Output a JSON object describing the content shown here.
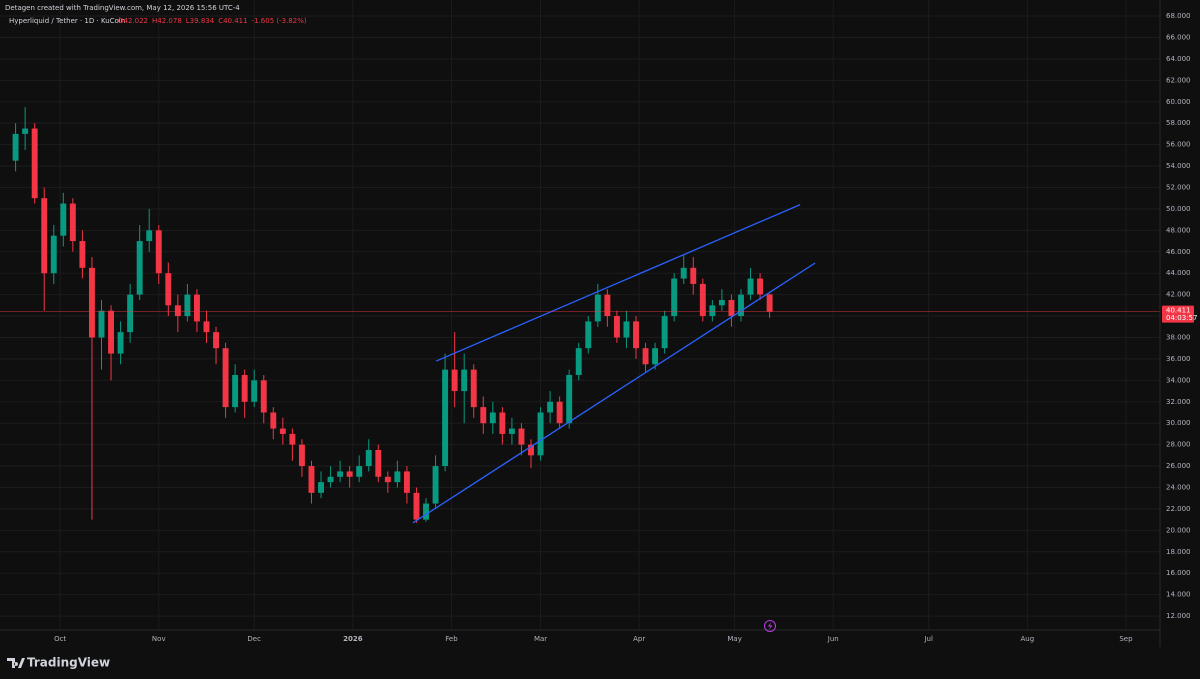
{
  "header": "Detagen created with TradingView.com, May 12, 2026 15:56 UTC-4",
  "footer": "TradingView",
  "chart_data": {
    "type": "candlestick",
    "symbol": "Hyperliquid / Tether · 1D · KuCoin",
    "legend_values": [
      "O42.022",
      "H42.078",
      "L39.834",
      "C40.411",
      "-1.605 (-3.82%)"
    ],
    "last_price": 40.411,
    "countdown": "04:03:57",
    "up_color": "#089981",
    "down_color": "#f23645",
    "line_color": "#2962ff",
    "grid": true,
    "xlim": [
      -18.9,
      345.7
    ],
    "ylim": [
      10.7,
      68.75
    ],
    "xticks": [
      {
        "value": 0,
        "label": "Oct"
      },
      {
        "value": 31,
        "label": "Nov"
      },
      {
        "value": 61,
        "label": "Dec"
      },
      {
        "value": 92,
        "label": "2026"
      },
      {
        "value": 123,
        "label": "Feb"
      },
      {
        "value": 151,
        "label": "Mar"
      },
      {
        "value": 182,
        "label": "Apr"
      },
      {
        "value": 212,
        "label": "May"
      },
      {
        "value": 243,
        "label": "Jun"
      },
      {
        "value": 273,
        "label": "Jul"
      },
      {
        "value": 304,
        "label": "Aug"
      },
      {
        "value": 335,
        "label": "Sep"
      }
    ],
    "yticks": [
      {
        "value": 12,
        "label": "12.000"
      },
      {
        "value": 14,
        "label": "14.000"
      },
      {
        "value": 16,
        "label": "16.000"
      },
      {
        "value": 18,
        "label": "18.000"
      },
      {
        "value": 20,
        "label": "20.000"
      },
      {
        "value": 22,
        "label": "22.000"
      },
      {
        "value": 24,
        "label": "24.000"
      },
      {
        "value": 26,
        "label": "26.000"
      },
      {
        "value": 28,
        "label": "28.000"
      },
      {
        "value": 30,
        "label": "30.000"
      },
      {
        "value": 32,
        "label": "32.000"
      },
      {
        "value": 34,
        "label": "34.000"
      },
      {
        "value": 36,
        "label": "36.000"
      },
      {
        "value": 38,
        "label": "38.000"
      },
      {
        "value": 40,
        "label": "40.000"
      },
      {
        "value": 42,
        "label": "42.000"
      },
      {
        "value": 44,
        "label": "44.000"
      },
      {
        "value": 46,
        "label": "46.000"
      },
      {
        "value": 48,
        "label": "48.000"
      },
      {
        "value": 50,
        "label": "50.000"
      },
      {
        "value": 52,
        "label": "52.000"
      },
      {
        "value": 54,
        "label": "54.000"
      },
      {
        "value": 56,
        "label": "56.000"
      },
      {
        "value": 58,
        "label": "58.000"
      },
      {
        "value": 60,
        "label": "60.000"
      },
      {
        "value": 62,
        "label": "62.000"
      },
      {
        "value": 64,
        "label": "64.000"
      },
      {
        "value": 66,
        "label": "66.000"
      },
      {
        "value": 68,
        "label": "68.000"
      }
    ],
    "x": [
      -14,
      -11,
      -8,
      -5,
      -2,
      1,
      4,
      7,
      10,
      13,
      16,
      19,
      22,
      25,
      28,
      31,
      34,
      37,
      40,
      43,
      46,
      49,
      52,
      55,
      58,
      61,
      64,
      67,
      70,
      73,
      76,
      79,
      82,
      85,
      88,
      91,
      94,
      97,
      100,
      103,
      106,
      109,
      112,
      115,
      118,
      121,
      124,
      127,
      130,
      133,
      136,
      139,
      142,
      145,
      148,
      151,
      154,
      157,
      160,
      163,
      166,
      169,
      172,
      175,
      178,
      181,
      184,
      187,
      190,
      193,
      196,
      199,
      202,
      205,
      208,
      211,
      214,
      217,
      220,
      223
    ],
    "open": [
      54.5,
      57,
      57.5,
      51,
      44,
      47.5,
      50.5,
      47,
      44.5,
      38,
      40.5,
      36.5,
      38.5,
      42,
      47,
      48,
      44,
      41,
      40,
      42,
      39.5,
      38.5,
      37,
      31.5,
      34.5,
      32,
      34,
      31,
      29.5,
      29,
      28,
      26,
      23.5,
      24.5,
      25,
      25.5,
      25,
      26,
      27.5,
      25,
      24.5,
      25.5,
      23.5,
      21,
      22.5,
      26,
      35,
      33,
      35,
      31.5,
      30,
      31,
      29,
      29.5,
      28,
      27,
      31,
      32,
      30,
      34.5,
      37,
      39.5,
      42,
      40,
      38,
      39.5,
      37,
      35.5,
      37,
      40,
      43.5,
      44.5,
      43,
      40,
      41,
      41.5,
      40,
      42,
      43.5,
      42.022
    ],
    "high": [
      58,
      59.5,
      58,
      52,
      48.5,
      51.5,
      51,
      48,
      45.5,
      41.5,
      41,
      39.5,
      43,
      48.5,
      50,
      48.5,
      45,
      42,
      43,
      42.5,
      40.5,
      39,
      37.5,
      35.5,
      35,
      35,
      34.5,
      31.5,
      30.5,
      29.5,
      28.5,
      26.5,
      25.5,
      26,
      26.5,
      26,
      27,
      28.5,
      28,
      25.5,
      26.5,
      26,
      24,
      23,
      27,
      36.5,
      38.5,
      36.5,
      35.5,
      32.5,
      32,
      31.5,
      30.5,
      30,
      28.5,
      31.5,
      33,
      32.5,
      35,
      37.5,
      40,
      43,
      42.5,
      40.5,
      40.5,
      40,
      37.5,
      37.5,
      40.5,
      44,
      45.7,
      45.5,
      43.5,
      41.5,
      42.5,
      42,
      42.5,
      44.5,
      44,
      42.078
    ],
    "low": [
      53.5,
      55.5,
      50.5,
      40.5,
      43,
      46.5,
      46,
      43.5,
      21,
      35,
      34,
      35.5,
      37.5,
      41.5,
      46,
      43,
      40,
      38.5,
      39.5,
      38.5,
      37.5,
      35.5,
      30.5,
      31,
      30.5,
      31.5,
      30,
      28.5,
      28,
      26.5,
      25,
      22.5,
      23,
      24,
      24.5,
      24,
      24.5,
      25.5,
      24.5,
      23.5,
      24,
      22.5,
      20.7,
      20.8,
      22,
      25.5,
      31.5,
      30,
      30.5,
      29,
      29,
      28,
      28,
      27,
      25.8,
      26.5,
      30,
      29.5,
      29.5,
      34,
      36.5,
      39,
      39,
      37.5,
      37,
      36,
      34.8,
      35,
      36.5,
      39.5,
      43,
      42,
      39.5,
      39.5,
      40.5,
      39,
      39.5,
      41.5,
      41.5,
      39.834
    ],
    "close": [
      57,
      57.5,
      51,
      44,
      47.5,
      50.5,
      47,
      44.5,
      38,
      40.5,
      36.5,
      38.5,
      42,
      47,
      48,
      44,
      41,
      40,
      42,
      39.5,
      38.5,
      37,
      31.5,
      34.5,
      32,
      34,
      31,
      29.5,
      29,
      28,
      26,
      23.5,
      24.5,
      25,
      25.5,
      25,
      26,
      27.5,
      25,
      24.5,
      25.5,
      23.5,
      21,
      22.5,
      26,
      35,
      33,
      35,
      31.5,
      30,
      31,
      29,
      29.5,
      28,
      27,
      31,
      32,
      30,
      34.5,
      37,
      39.5,
      42,
      40,
      38,
      39.5,
      37,
      35.5,
      37,
      40,
      43.5,
      44.5,
      43,
      40,
      41,
      41.5,
      40,
      42,
      43.5,
      42.022,
      40.411
    ],
    "trendlines": [
      {
        "x": [
          118.2,
          232.6
        ],
        "y": [
          35.8,
          50.4
        ]
      },
      {
        "x": [
          110.9,
          237.3
        ],
        "y": [
          20.7,
          44.95
        ]
      }
    ]
  }
}
